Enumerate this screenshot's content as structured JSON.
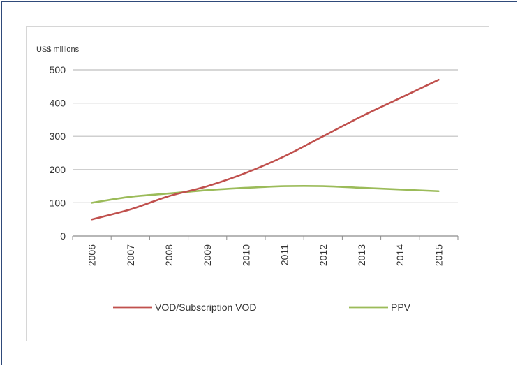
{
  "chart_data": {
    "type": "line",
    "ylabel": "US$ millions",
    "x": [
      "2006",
      "2007",
      "2008",
      "2009",
      "2010",
      "2011",
      "2012",
      "2013",
      "2014",
      "2015"
    ],
    "ylim": [
      0,
      500
    ],
    "yticks": [
      0,
      100,
      200,
      300,
      400,
      500
    ],
    "grid": true,
    "legend_position": "bottom",
    "series": [
      {
        "name": "VOD/Subscription VOD",
        "color": "#c0504d",
        "values": [
          50,
          80,
          120,
          150,
          190,
          240,
          300,
          360,
          415,
          470
        ]
      },
      {
        "name": "PPV",
        "color": "#9bbb59",
        "values": [
          100,
          118,
          128,
          138,
          145,
          150,
          150,
          145,
          140,
          135
        ]
      }
    ]
  }
}
